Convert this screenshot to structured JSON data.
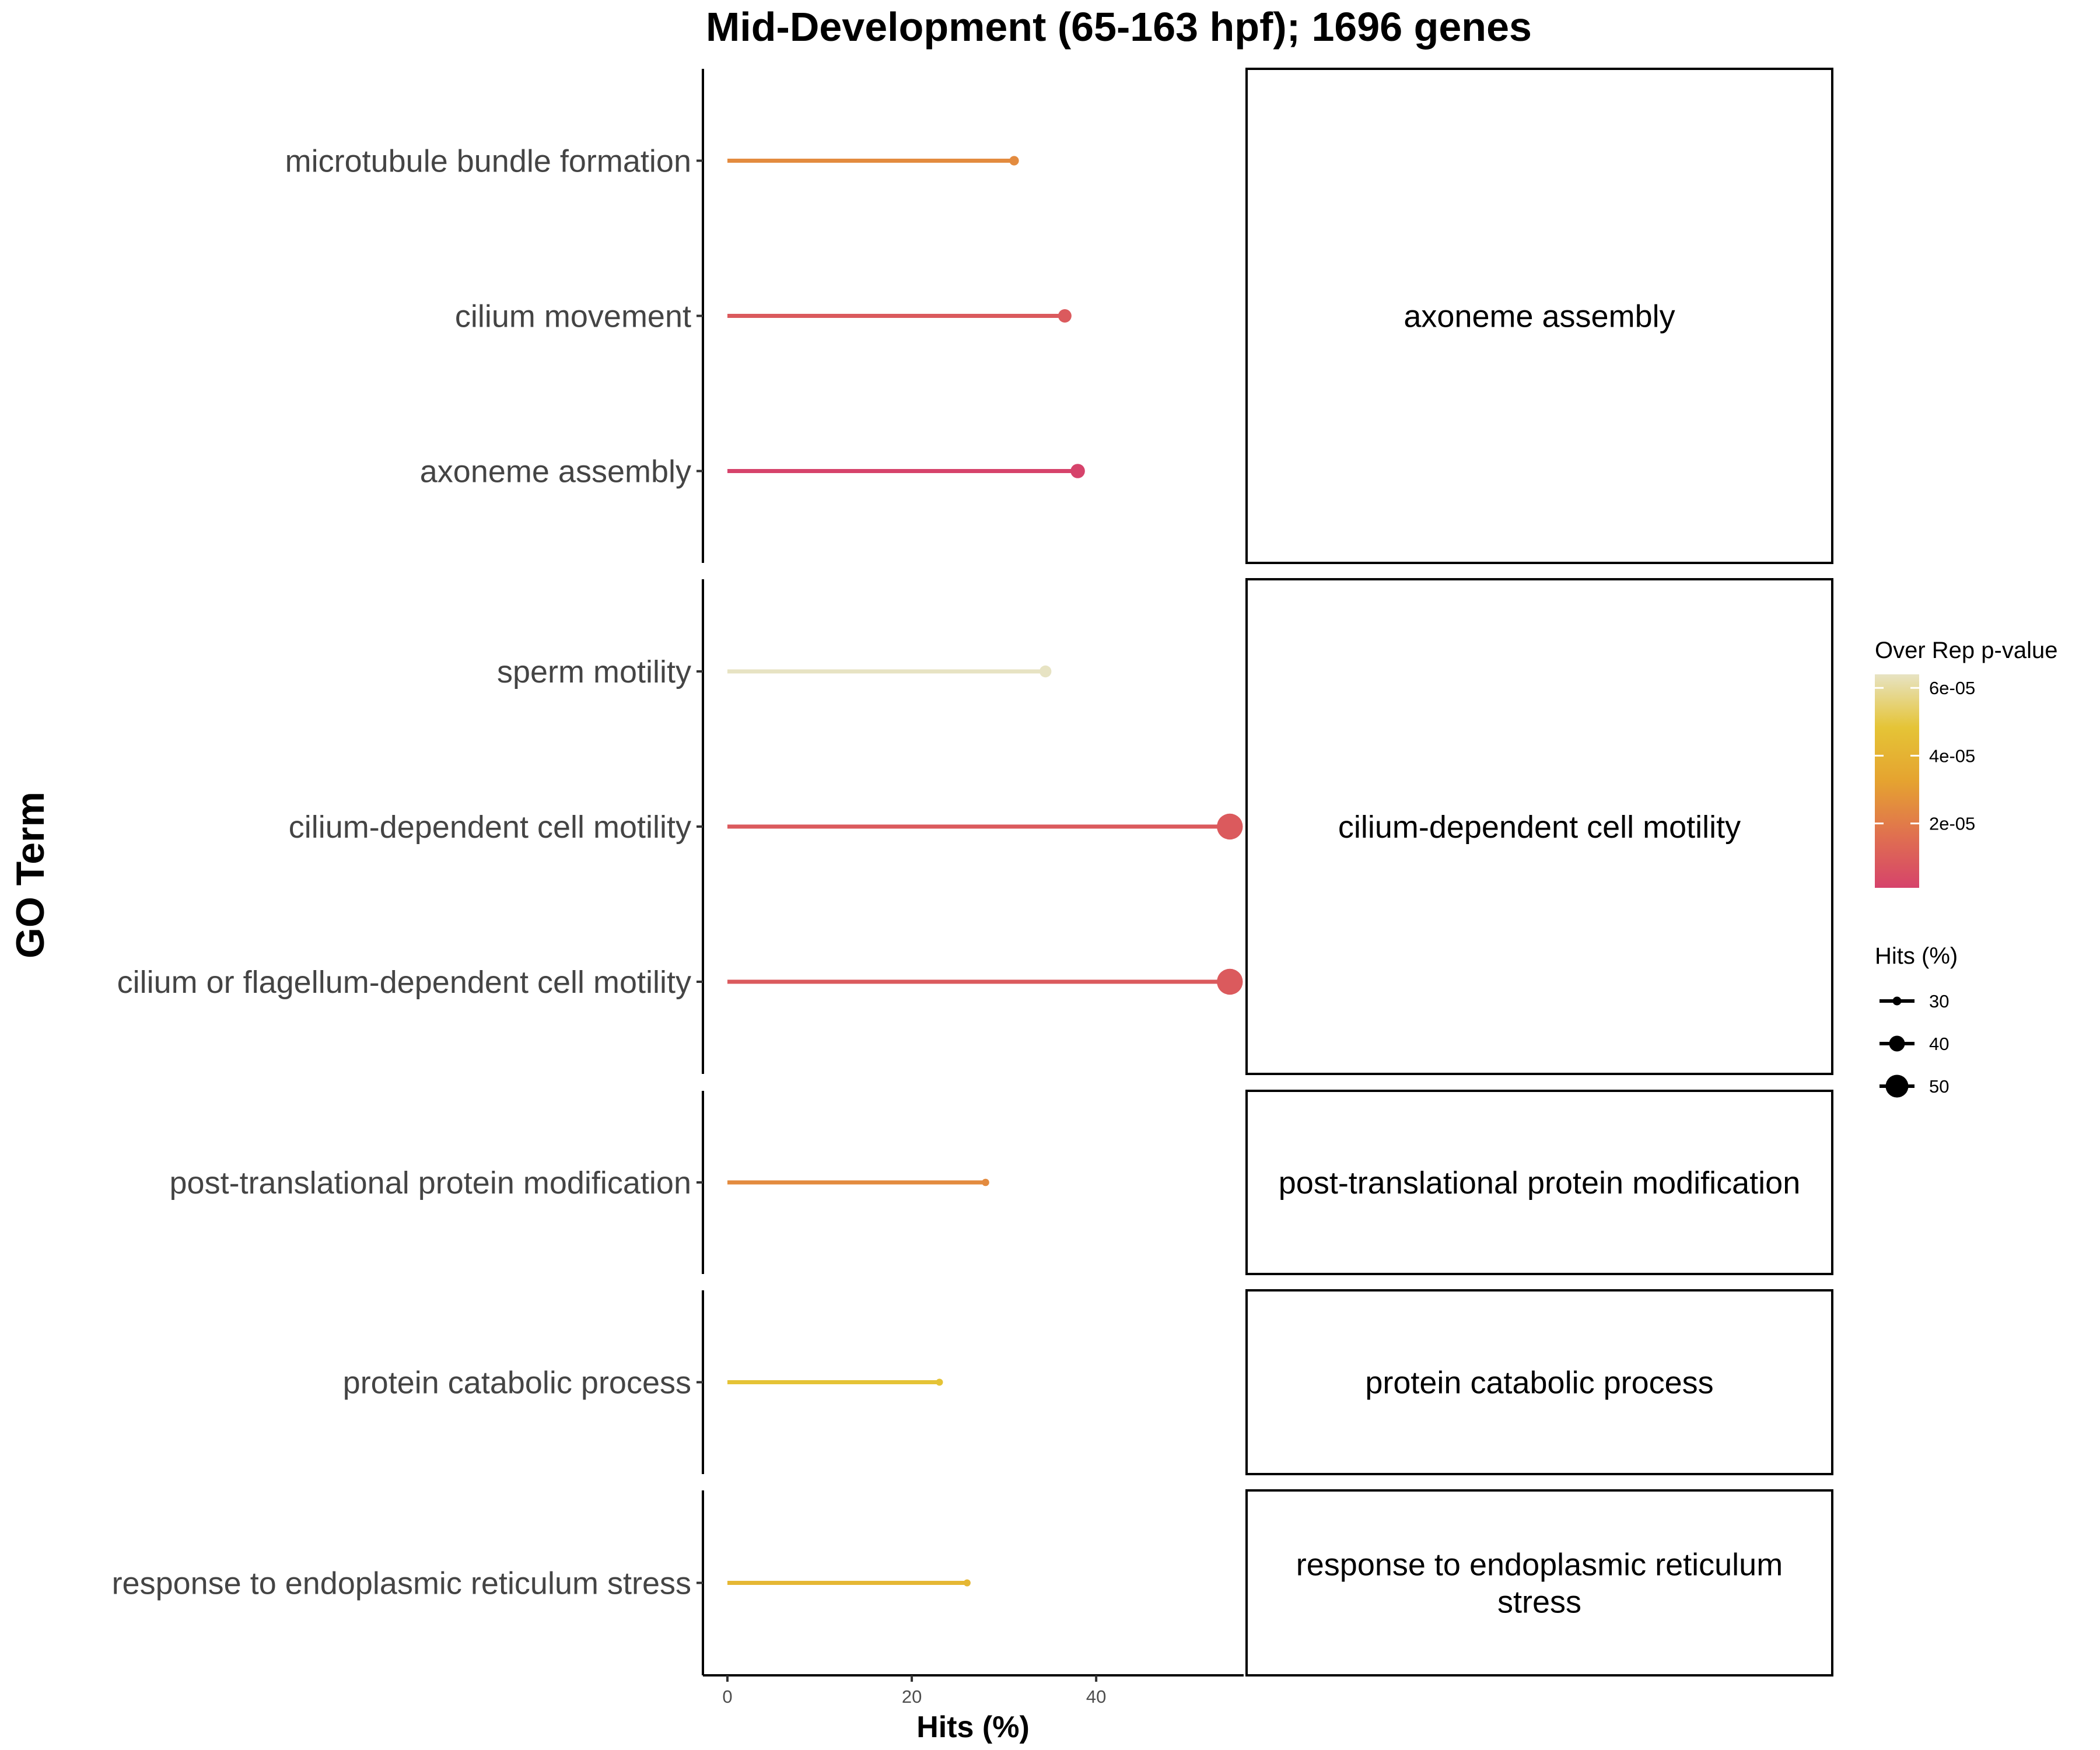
{
  "chart_data": {
    "type": "lollipop",
    "title": "Mid-Development (65-163 hpf); 1696 genes",
    "xlabel": "Hits (%)",
    "ylabel": "GO Term",
    "xlim": [
      0,
      56
    ],
    "x_ticks": [
      0,
      20,
      40
    ],
    "panels": [
      {
        "strip_label": "axoneme assembly",
        "terms": [
          {
            "term": "microtubule bundle formation",
            "hits_pct": 31.1,
            "p_value": 2.5e-05
          },
          {
            "term": "cilium movement",
            "hits_pct": 36.6,
            "p_value": 9e-06
          },
          {
            "term": "axoneme assembly",
            "hits_pct": 38.0,
            "p_value": 1e-06
          }
        ]
      },
      {
        "strip_label": "cilium-dependent cell motility",
        "terms": [
          {
            "term": "sperm motility",
            "hits_pct": 34.5,
            "p_value": 6.4e-05
          },
          {
            "term": "cilium-dependent cell motility",
            "hits_pct": 54.5,
            "p_value": 9e-06
          },
          {
            "term": "cilium or flagellum-dependent cell motility",
            "hits_pct": 54.5,
            "p_value": 9e-06
          }
        ]
      },
      {
        "strip_label": "post-translational protein modification",
        "terms": [
          {
            "term": "post-translational protein modification",
            "hits_pct": 28.0,
            "p_value": 2.5e-05
          }
        ]
      },
      {
        "strip_label": "protein catabolic process",
        "terms": [
          {
            "term": "protein catabolic process",
            "hits_pct": 23.0,
            "p_value": 4.8e-05
          }
        ]
      },
      {
        "strip_label": "response to endoplasmic reticulum stress",
        "strip_lines": [
          "response to endoplasmic reticulum",
          "stress"
        ],
        "terms": [
          {
            "term": "response to endoplasmic reticulum stress",
            "hits_pct": 26.0,
            "p_value": 4.2e-05
          }
        ]
      }
    ],
    "color_legend": {
      "title": "Over Rep p-value",
      "tick_labels": [
        "6e-05",
        "4e-05",
        "2e-05"
      ],
      "tick_values": [
        6e-05,
        4e-05,
        2e-05
      ],
      "range": [
        1e-06,
        6.4e-05
      ],
      "colors_low_to_high": [
        "#d6436b",
        "#e0714f",
        "#e5a330",
        "#e5c436",
        "#e7e3c3"
      ]
    },
    "size_legend": {
      "title": "Hits (%)",
      "values": [
        30,
        40,
        50
      ]
    },
    "grid": false,
    "legend_position": "right"
  }
}
